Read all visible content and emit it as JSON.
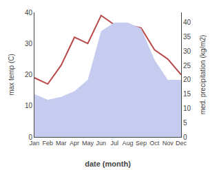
{
  "chart_data": {
    "type": "line",
    "categories": [
      "Jan",
      "Feb",
      "Mar",
      "Apr",
      "May",
      "Jun",
      "Jul",
      "Aug",
      "Sep",
      "Oct",
      "Nov",
      "Dec"
    ],
    "series": [
      {
        "type": "area",
        "axis": "y2",
        "color": "#c5ccf0",
        "values": [
          15,
          13,
          14,
          16,
          20,
          37,
          40,
          40,
          38,
          27,
          20,
          20
        ]
      },
      {
        "type": "line",
        "color": "#b94a4a",
        "values": [
          19,
          17,
          23,
          32,
          30,
          39,
          36,
          36,
          35,
          28,
          25,
          20
        ]
      }
    ],
    "xlabel": "date (month)",
    "ylabel": "max temp (C)",
    "y2label": "med. precipitation (kg/m2)",
    "ylim": [
      0,
      40
    ],
    "yticks": [
      0,
      10,
      20,
      30,
      40
    ],
    "y2lim": [
      0,
      43.57
    ],
    "y2ticks": [
      0,
      5,
      10,
      15,
      20,
      25,
      30,
      35,
      40
    ],
    "grid": false
  }
}
